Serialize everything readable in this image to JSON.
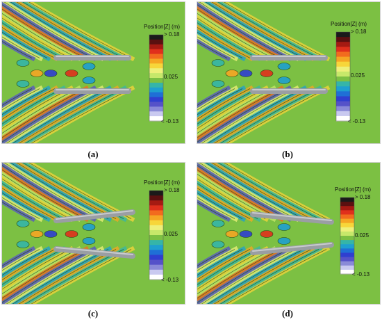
{
  "legend": {
    "title": "Position[Z] (m)",
    "max_label": "> 0.18",
    "mid_label": "0.025",
    "min_label": "< -0.13",
    "colors": [
      "#1a1a1a",
      "#5a1010",
      "#a61a12",
      "#e0301c",
      "#f26b1e",
      "#f5a623",
      "#f7d63a",
      "#eef07a",
      "#c7e86a",
      "#7cc043",
      "#35b5a8",
      "#1e9fd0",
      "#1f6fd6",
      "#2f3fd0",
      "#5552c9",
      "#8a8ad8",
      "#c9c9f0",
      "#ffffff"
    ]
  },
  "background_color": "#7cc043",
  "captions": {
    "a": "(a)",
    "b": "(b)",
    "c": "(c)",
    "d": "(d)"
  }
}
